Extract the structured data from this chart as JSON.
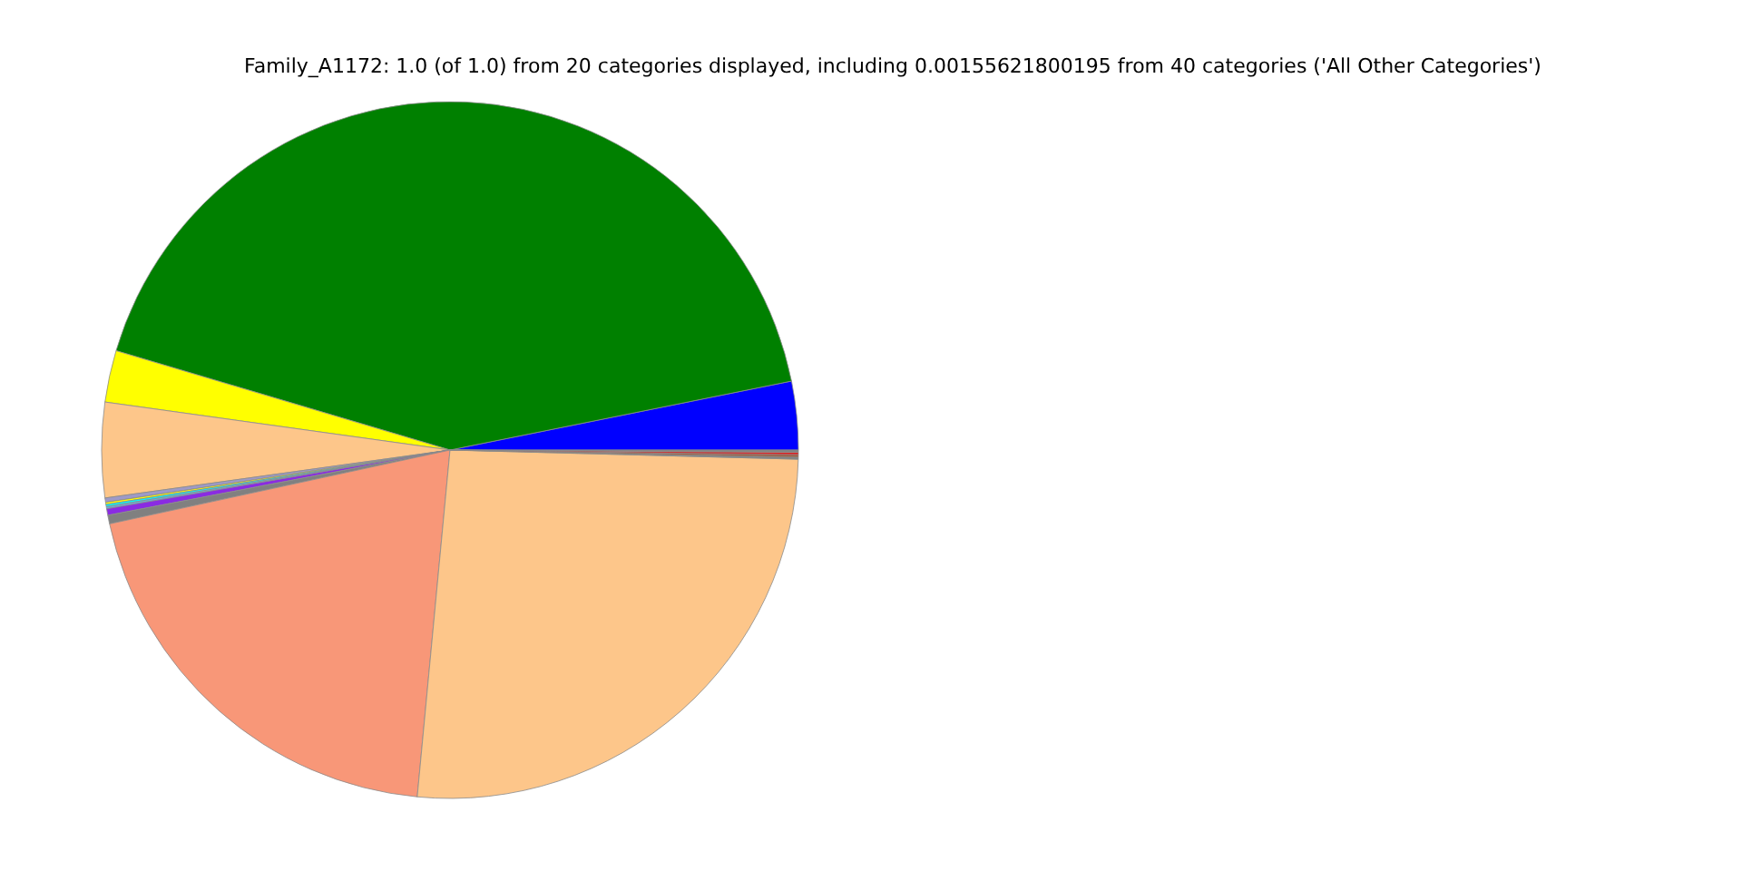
{
  "chart_data": {
    "type": "pie",
    "title": "Family_A1172: 1.0 (of 1.0) from 20 categories displayed, including 0.00155621800195 from 40 categories ('All Other Categories')",
    "categories": [
      null,
      null,
      null,
      null,
      null,
      null,
      null,
      null,
      null,
      null,
      null,
      null,
      null,
      null,
      null,
      null
    ],
    "values": [
      3.17,
      42.23,
      2.4,
      4.4,
      0.2,
      0.1,
      0.1,
      0.1,
      0.3,
      0.4,
      20.1,
      26.08,
      0.1,
      0.1,
      0.12,
      0.1
    ],
    "colors": [
      "#0000ff",
      "#008000",
      "#ffff00",
      "#fdc68a",
      "#9e9ac8",
      "#ffff00",
      "#00ffff",
      "#6baed6",
      "#8a2be2",
      "#808080",
      "#f89778",
      "#fdc68a",
      "#808080",
      "#a0522d",
      "#d62728",
      "#808080"
    ]
  }
}
